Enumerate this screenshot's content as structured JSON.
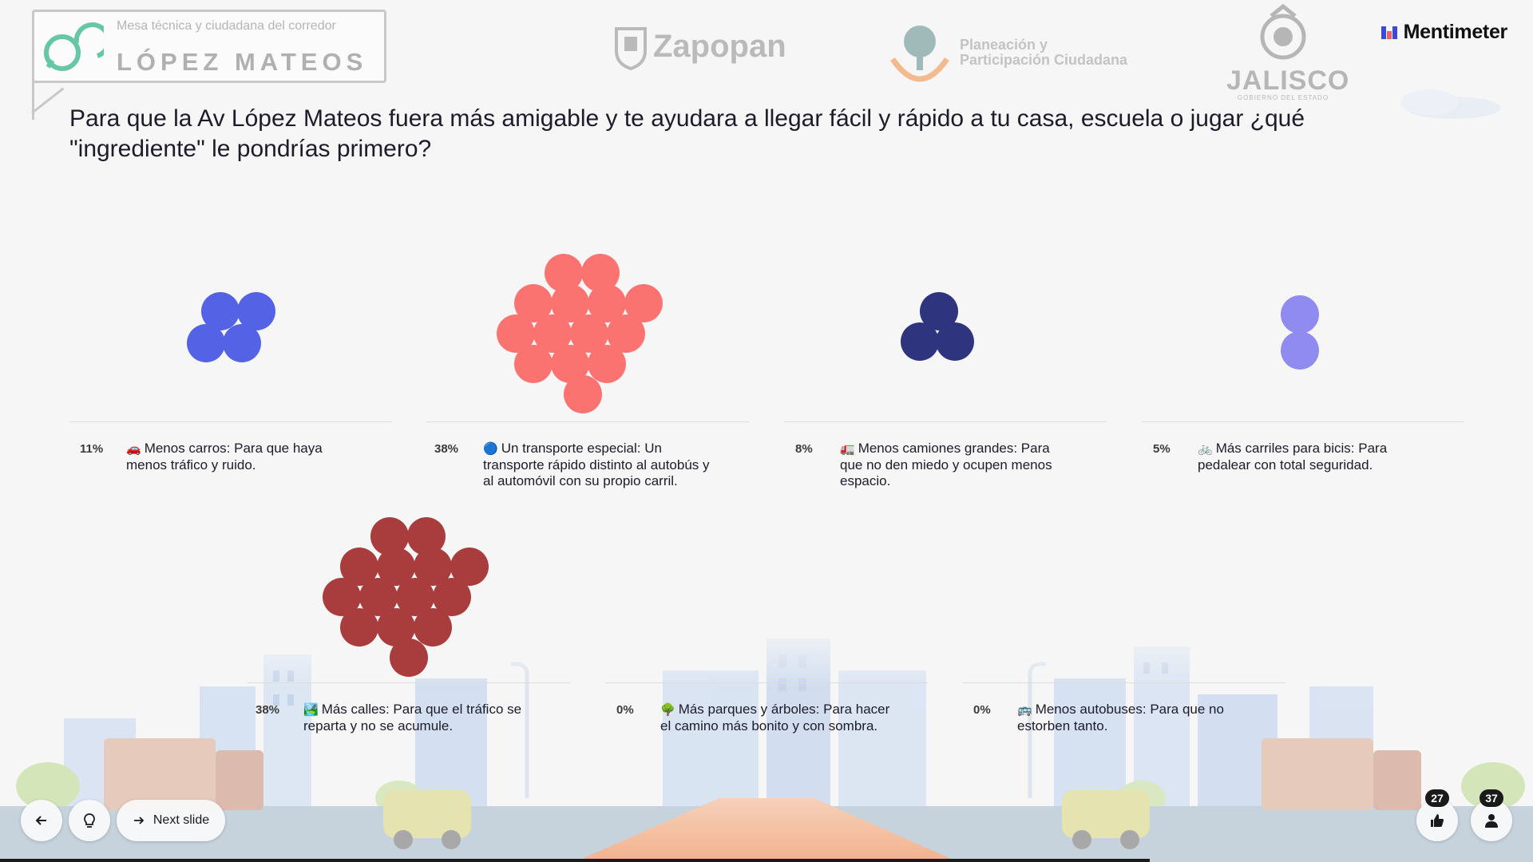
{
  "header": {
    "logo_subtitle": "Mesa técnica y ciudadana del corredor",
    "logo_title": "LÓPEZ MATEOS",
    "zapopan": "Zapopan",
    "planeacion_line1": "Planeación y",
    "planeacion_line2": "Participación Ciudadana",
    "jalisco": "JALISCO",
    "jalisco_sub": "GOBIERNO DEL ESTADO",
    "brand": "Mentimeter"
  },
  "question": "Para que la Av López Mateos fuera más amigable y te ayudara a llegar fácil y rápido a tu casa, escuela o jugar ¿qué \"ingrediente\" le pondrías primero?",
  "options": [
    {
      "percent": "11%",
      "emoji": "🚗",
      "label": "Menos carros: Para que haya menos tráfico y ruido.",
      "color": "#5462e6",
      "count": 4
    },
    {
      "percent": "38%",
      "emoji": "🔵",
      "label": "Un transporte especial: Un transporte rápido distinto al autobús y al automóvil con su propio carril.",
      "color": "#fb7371",
      "count": 14
    },
    {
      "percent": "8%",
      "emoji": "🚛",
      "label": "Menos camiones grandes: Para que no den miedo y ocupen menos espacio.",
      "color": "#2e347e",
      "count": 3
    },
    {
      "percent": "5%",
      "emoji": "🚲",
      "label": "Más carriles para bicis: Para pedalear con total seguridad.",
      "color": "#8f8bf0",
      "count": 2
    },
    {
      "percent": "38%",
      "emoji": "🏞️",
      "label": "Más calles: Para que el tráfico se reparta y no se acumule.",
      "color": "#a93c3c",
      "count": 14
    },
    {
      "percent": "0%",
      "emoji": "🌳",
      "label": "Más parques y árboles: Para hacer el camino más bonito y con sombra.",
      "color": "#5462e6",
      "count": 0
    },
    {
      "percent": "0%",
      "emoji": "🚌",
      "label": "Menos autobuses: Para que no estorben tanto.",
      "color": "#5462e6",
      "count": 0
    }
  ],
  "controls": {
    "next_label": "Next slide",
    "reactions_count": "27",
    "participants_count": "37"
  },
  "icons": {
    "back": "arrow-left-icon",
    "hint": "lightbulb-icon",
    "next": "arrow-right-icon",
    "reactions": "thumbs-up-icon",
    "participants": "person-icon"
  }
}
